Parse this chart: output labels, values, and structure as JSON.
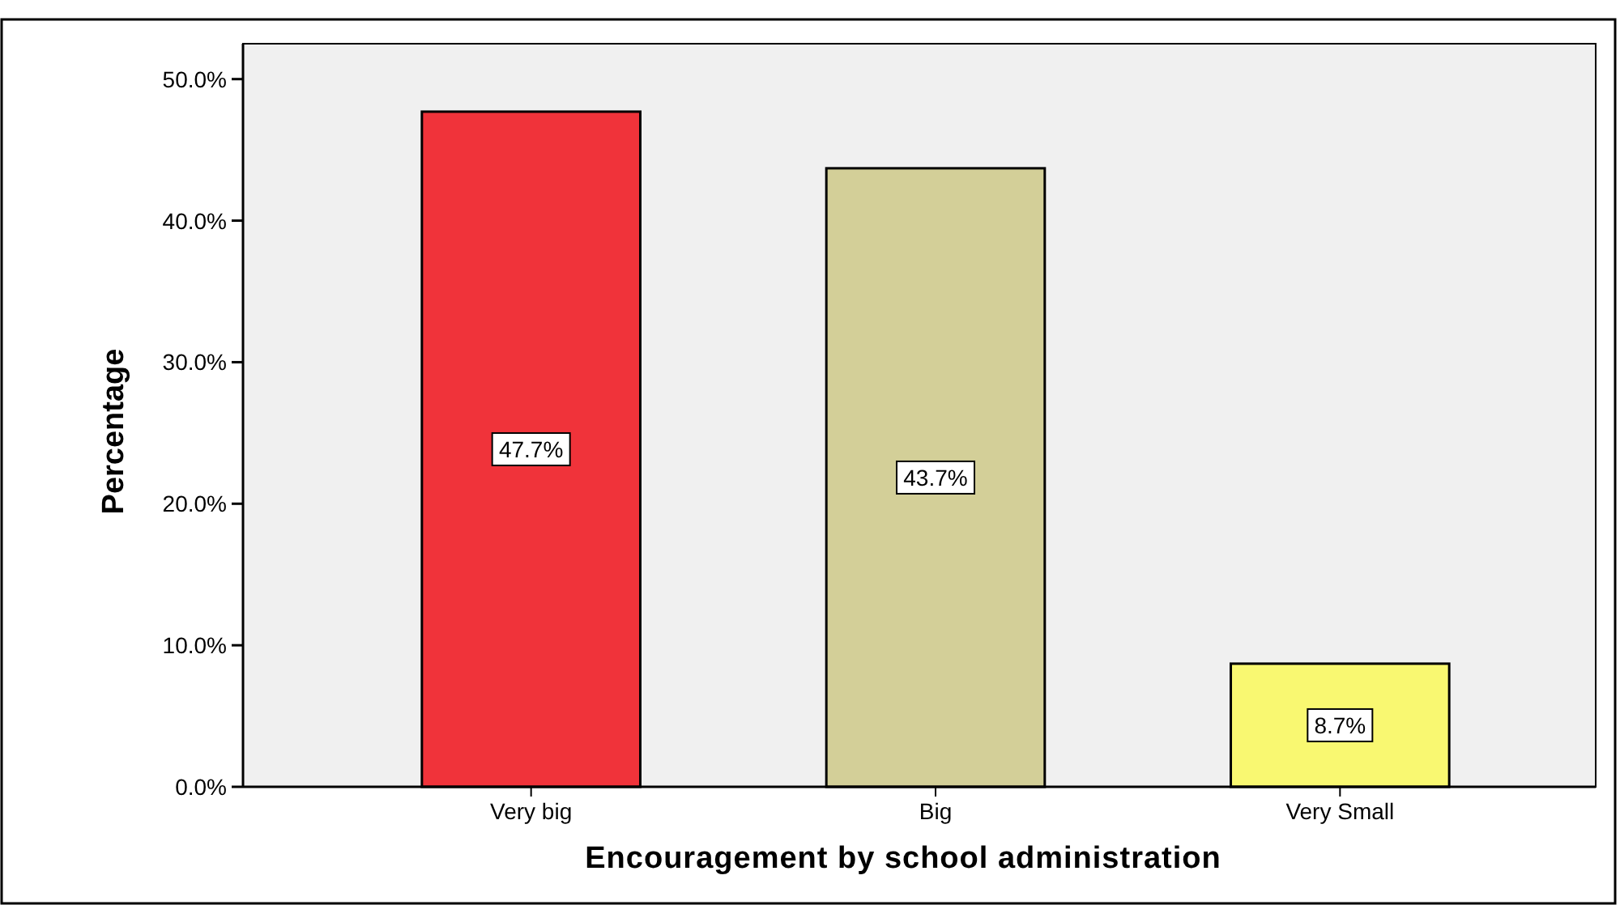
{
  "chart_data": {
    "type": "bar",
    "xlabel": "Encouragement by school administration",
    "ylabel": "Percentage",
    "categories": [
      "Very big",
      "Big",
      "Very Small"
    ],
    "values": [
      47.7,
      43.7,
      8.7
    ],
    "colors": [
      "#f0333a",
      "#d3cf98",
      "#f9f871"
    ],
    "value_labels": [
      "47.7%",
      "43.7%",
      "8.7%"
    ],
    "ylim": [
      0,
      52.5
    ],
    "yticks": [
      {
        "value": 0,
        "label": "0.0%"
      },
      {
        "value": 10,
        "label": "10.0%"
      },
      {
        "value": 20,
        "label": "20.0%"
      },
      {
        "value": 30,
        "label": "30.0%"
      },
      {
        "value": 40,
        "label": "40.0%"
      },
      {
        "value": 50,
        "label": "50.0%"
      }
    ],
    "grid": false
  }
}
